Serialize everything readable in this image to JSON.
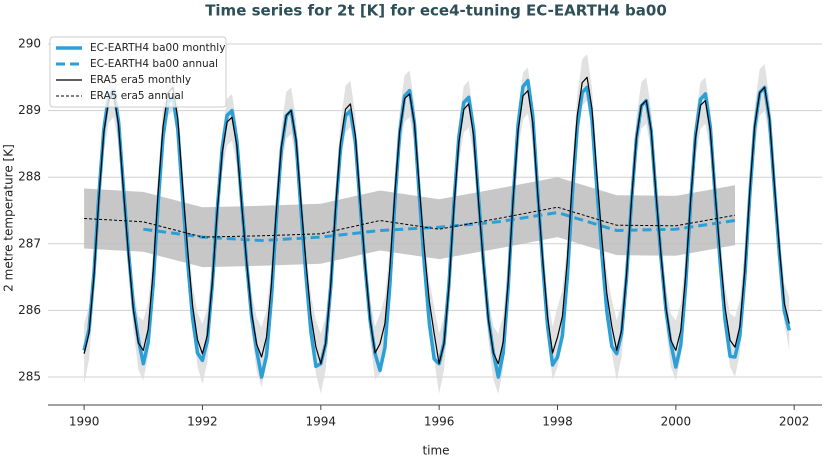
{
  "chart_data": {
    "type": "line",
    "title": "Time series for 2t [K] for ece4-tuning EC-EARTH4 ba00",
    "xlabel": "time",
    "ylabel": "2 metre temperature [K]",
    "xlim": [
      1989.39,
      2002.47
    ],
    "ylim": [
      284.58,
      290.21
    ],
    "xticks": [
      1990,
      1992,
      1994,
      1996,
      1998,
      2000,
      2002
    ],
    "yticks": [
      285,
      286,
      287,
      288,
      289,
      290
    ],
    "grid": true,
    "legend": "upper left",
    "x": [
      1990,
      1990.083,
      1990.167,
      1990.25,
      1990.333,
      1990.417,
      1990.5,
      1990.583,
      1990.667,
      1990.75,
      1990.833,
      1990.917,
      1991,
      1991.083,
      1991.167,
      1991.25,
      1991.333,
      1991.417,
      1991.5,
      1991.583,
      1991.667,
      1991.75,
      1991.833,
      1991.917,
      1992,
      1992.083,
      1992.167,
      1992.25,
      1992.333,
      1992.417,
      1992.5,
      1992.583,
      1992.667,
      1992.75,
      1992.833,
      1992.917,
      1993,
      1993.083,
      1993.167,
      1993.25,
      1993.333,
      1993.417,
      1993.5,
      1993.583,
      1993.667,
      1993.75,
      1993.833,
      1993.917,
      1994,
      1994.083,
      1994.167,
      1994.25,
      1994.333,
      1994.417,
      1994.5,
      1994.583,
      1994.667,
      1994.75,
      1994.833,
      1994.917,
      1995,
      1995.083,
      1995.167,
      1995.25,
      1995.333,
      1995.417,
      1995.5,
      1995.583,
      1995.667,
      1995.75,
      1995.833,
      1995.917,
      1996,
      1996.083,
      1996.167,
      1996.25,
      1996.333,
      1996.417,
      1996.5,
      1996.583,
      1996.667,
      1996.75,
      1996.833,
      1996.917,
      1997,
      1997.083,
      1997.167,
      1997.25,
      1997.333,
      1997.417,
      1997.5,
      1997.583,
      1997.667,
      1997.75,
      1997.833,
      1997.917,
      1998,
      1998.083,
      1998.167,
      1998.25,
      1998.333,
      1998.417,
      1998.5,
      1998.583,
      1998.667,
      1998.75,
      1998.833,
      1998.917,
      1999,
      1999.083,
      1999.167,
      1999.25,
      1999.333,
      1999.417,
      1999.5,
      1999.583,
      1999.667,
      1999.75,
      1999.833,
      1999.917,
      2000,
      2000.083,
      2000.167,
      2000.25,
      2000.333,
      2000.417,
      2000.5,
      2000.583,
      2000.667,
      2000.75,
      2000.833,
      2000.917,
      2001,
      2001.083,
      2001.167,
      2001.25,
      2001.333,
      2001.417,
      2001.5,
      2001.583,
      2001.667,
      2001.75,
      2001.833,
      2001.917
    ],
    "series": [
      {
        "name": "EC-EARTH4 ba00 monthly",
        "color": "#2a9fd8",
        "linestyle": "solid",
        "linewidth": 3.5,
        "values": [
          285.4,
          285.71,
          286.57,
          287.74,
          288.72,
          289.22,
          289.3,
          288.83,
          287.82,
          286.88,
          286.06,
          285.56,
          285.2,
          285.52,
          286.4,
          287.6,
          288.6,
          289.12,
          289.2,
          288.72,
          287.68,
          286.72,
          285.88,
          285.36,
          285.25,
          285.55,
          286.38,
          287.5,
          288.44,
          288.93,
          289.0,
          288.55,
          287.58,
          286.68,
          285.89,
          285.4,
          285.0,
          285.32,
          286.2,
          287.4,
          288.4,
          288.92,
          289.0,
          288.52,
          287.48,
          286.52,
          285.68,
          285.16,
          285.2,
          285.5,
          286.34,
          287.48,
          288.43,
          288.92,
          289.0,
          288.54,
          287.56,
          286.64,
          285.85,
          285.35,
          285.1,
          285.44,
          286.36,
          287.62,
          288.67,
          289.22,
          289.3,
          288.8,
          287.7,
          286.7,
          285.81,
          285.27,
          285.2,
          285.52,
          286.4,
          287.6,
          288.6,
          289.12,
          289.2,
          288.72,
          287.68,
          286.72,
          285.88,
          285.36,
          285.0,
          285.36,
          286.34,
          287.67,
          288.78,
          289.36,
          289.45,
          288.92,
          287.76,
          286.69,
          285.76,
          285.18,
          285.3,
          285.62,
          286.52,
          287.73,
          288.74,
          289.27,
          289.35,
          288.86,
          287.81,
          286.84,
          285.99,
          285.46,
          285.35,
          285.65,
          286.49,
          287.63,
          288.58,
          289.07,
          289.15,
          288.69,
          287.71,
          286.79,
          286.0,
          285.5,
          285.15,
          285.48,
          286.38,
          287.61,
          288.64,
          289.17,
          289.25,
          288.76,
          287.69,
          286.71,
          285.85,
          285.31,
          285.3,
          285.62,
          286.52,
          287.73,
          288.74,
          289.27,
          289.35,
          288.86,
          287.81,
          286.84,
          285.99,
          285.7
        ]
      },
      {
        "name": "EC-EARTH4 ba00 annual",
        "color": "#2a9fd8",
        "linestyle": "dashed",
        "linewidth": 3,
        "x": [
          1991,
          1992,
          1993,
          1994,
          1995,
          1996,
          1997,
          1998,
          1999,
          2000,
          2001
        ],
        "values": [
          287.22,
          287.1,
          287.05,
          287.1,
          287.2,
          287.25,
          287.33,
          287.47,
          287.2,
          287.22,
          287.35
        ]
      },
      {
        "name": "ERA5 era5 monthly",
        "color": "#000000",
        "linestyle": "solid",
        "linewidth": 1.2,
        "error_color": "#dcdcdc",
        "values": [
          285.35,
          285.66,
          286.52,
          287.69,
          288.67,
          289.17,
          289.25,
          288.78,
          287.77,
          286.83,
          286.01,
          285.51,
          285.4,
          285.72,
          286.59,
          287.77,
          288.76,
          289.27,
          289.35,
          288.88,
          287.85,
          286.9,
          286.07,
          285.56,
          285.35,
          285.63,
          286.42,
          287.48,
          288.37,
          288.83,
          288.9,
          288.47,
          287.55,
          286.7,
          285.95,
          285.49,
          285.3,
          285.6,
          286.41,
          287.52,
          288.45,
          288.93,
          289.0,
          288.56,
          287.59,
          286.71,
          285.93,
          285.45,
          285.2,
          285.51,
          286.37,
          287.54,
          288.52,
          289.02,
          289.1,
          288.63,
          287.62,
          286.68,
          285.86,
          285.36,
          285.5,
          285.8,
          286.63,
          287.75,
          288.69,
          289.18,
          289.25,
          288.8,
          287.83,
          286.93,
          286.14,
          285.65,
          285.2,
          285.51,
          286.37,
          287.54,
          288.52,
          289.02,
          289.1,
          288.63,
          287.62,
          286.68,
          285.86,
          285.36,
          285.2,
          285.53,
          286.43,
          287.66,
          288.69,
          289.22,
          289.3,
          288.81,
          287.74,
          286.76,
          285.9,
          285.36,
          285.6,
          285.91,
          286.77,
          287.94,
          288.92,
          289.42,
          289.5,
          289.03,
          288.02,
          287.08,
          286.26,
          285.76,
          285.4,
          285.7,
          286.53,
          287.65,
          288.59,
          289.08,
          289.15,
          288.7,
          287.73,
          286.83,
          286.04,
          285.55,
          285.4,
          285.7,
          286.53,
          287.65,
          288.59,
          289.08,
          289.15,
          288.7,
          287.73,
          286.83,
          286.04,
          285.55,
          285.45,
          285.76,
          286.62,
          287.79,
          288.77,
          289.27,
          289.35,
          288.88,
          287.87,
          286.93,
          286.11,
          285.8
        ],
        "error": [
          0.45,
          0.4,
          0.3,
          0.25,
          0.3,
          0.35,
          0.35,
          0.3,
          0.25,
          0.25,
          0.3,
          0.4,
          0.45,
          0.4,
          0.3,
          0.25,
          0.3,
          0.35,
          0.35,
          0.3,
          0.25,
          0.25,
          0.3,
          0.4,
          0.45,
          0.4,
          0.3,
          0.25,
          0.3,
          0.35,
          0.35,
          0.3,
          0.25,
          0.25,
          0.3,
          0.4,
          0.45,
          0.4,
          0.3,
          0.25,
          0.3,
          0.35,
          0.35,
          0.3,
          0.25,
          0.25,
          0.3,
          0.4,
          0.45,
          0.4,
          0.3,
          0.25,
          0.3,
          0.35,
          0.35,
          0.3,
          0.25,
          0.25,
          0.3,
          0.4,
          0.45,
          0.4,
          0.3,
          0.25,
          0.3,
          0.35,
          0.35,
          0.3,
          0.25,
          0.25,
          0.3,
          0.4,
          0.45,
          0.4,
          0.3,
          0.25,
          0.3,
          0.35,
          0.35,
          0.3,
          0.25,
          0.25,
          0.3,
          0.4,
          0.45,
          0.4,
          0.3,
          0.25,
          0.3,
          0.35,
          0.35,
          0.3,
          0.25,
          0.25,
          0.3,
          0.4,
          0.45,
          0.4,
          0.3,
          0.25,
          0.3,
          0.35,
          0.35,
          0.3,
          0.25,
          0.25,
          0.3,
          0.4,
          0.45,
          0.4,
          0.3,
          0.25,
          0.3,
          0.35,
          0.35,
          0.3,
          0.25,
          0.25,
          0.3,
          0.4,
          0.45,
          0.4,
          0.3,
          0.25,
          0.3,
          0.35,
          0.35,
          0.3,
          0.25,
          0.25,
          0.3,
          0.4,
          0.45,
          0.4,
          0.3,
          0.25,
          0.3,
          0.35,
          0.35,
          0.3,
          0.25,
          0.25,
          0.3,
          0.4
        ]
      },
      {
        "name": "ERA5 era5 annual",
        "color": "#000000",
        "linestyle": "dashed",
        "linewidth": 1,
        "error_color": "#bdbdbd",
        "x": [
          1990,
          1991,
          1992,
          1993,
          1994,
          1995,
          1996,
          1997,
          1998,
          1999,
          2000,
          2001
        ],
        "values": [
          287.38,
          287.33,
          287.1,
          287.12,
          287.15,
          287.35,
          287.22,
          287.38,
          287.55,
          287.28,
          287.27,
          287.43
        ],
        "error": [
          0.45,
          0.45,
          0.45,
          0.45,
          0.45,
          0.45,
          0.45,
          0.45,
          0.45,
          0.45,
          0.45,
          0.45
        ]
      }
    ]
  }
}
